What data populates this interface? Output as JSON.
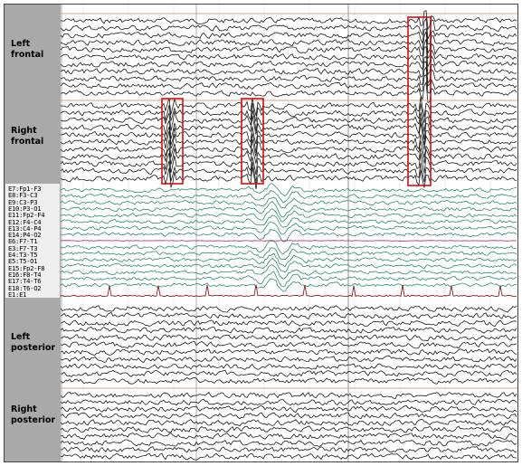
{
  "regions": {
    "left_frontal": "Left\nfrontal",
    "right_frontal": "Right\nfrontal",
    "left_posterior": "Left\nposterior",
    "right_posterior": "Right\nposterior"
  },
  "channels": [
    "E7:Fp1-F3",
    "E8:F3-C3",
    "E9:C3-P3",
    "E10:P3-O1",
    "E11:Fp2-F4",
    "E12:F4-C4",
    "E13:C4-P4",
    "E14:P4-O2",
    "E6:F7-T1",
    "E3:F7-T3",
    "E4:T3-T5",
    "E5:T5-O1",
    "E15:Fp2-F8",
    "E16:F8-T4",
    "E17:T4-T6",
    "E18:T6-O2",
    "E1:E1"
  ],
  "colors": {
    "trace": "#1a1a1a",
    "bipolar_trace": "#2e8b6e",
    "reference_trace": "#b0206e",
    "ecg_trace": "#8b1a1a",
    "reference_line": "#c9a88a",
    "highlight_box": "#d01010",
    "label_panel": "#a9a9a9"
  }
}
